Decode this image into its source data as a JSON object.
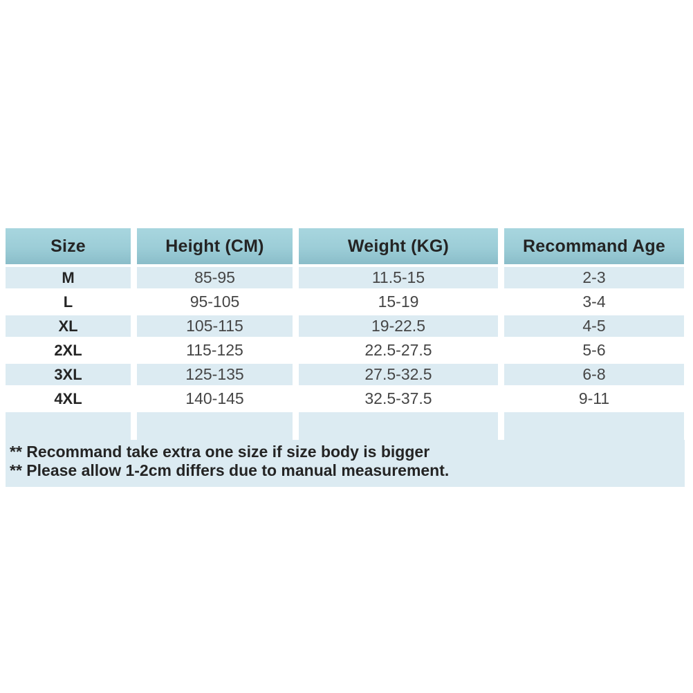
{
  "table": {
    "columns": [
      "Size",
      "Height (CM)",
      "Weight (KG)",
      "Recommand Age"
    ],
    "rows": [
      {
        "size": "M",
        "height": "85-95",
        "weight": "11.5-15",
        "age": "2-3"
      },
      {
        "size": "L",
        "height": "95-105",
        "weight": "15-19",
        "age": "3-4"
      },
      {
        "size": "XL",
        "height": "105-115",
        "weight": "19-22.5",
        "age": "4-5"
      },
      {
        "size": "2XL",
        "height": "115-125",
        "weight": "22.5-27.5",
        "age": "5-6"
      },
      {
        "size": "3XL",
        "height": "125-135",
        "weight": "27.5-32.5",
        "age": "6-8"
      },
      {
        "size": "4XL",
        "height": "140-145",
        "weight": "32.5-37.5",
        "age": "9-11"
      }
    ],
    "notes": [
      "** Recommand take extra one size if size body is bigger",
      "** Please allow 1-2cm differs due to manual measurement."
    ],
    "colors": {
      "header_teal": "#9ccdd7",
      "header_teal_dark": "#8abdc9",
      "row_blue": "#dcebf2",
      "row_white": "#ffffff",
      "text_dark": "#242424",
      "text_value": "#454545"
    }
  }
}
